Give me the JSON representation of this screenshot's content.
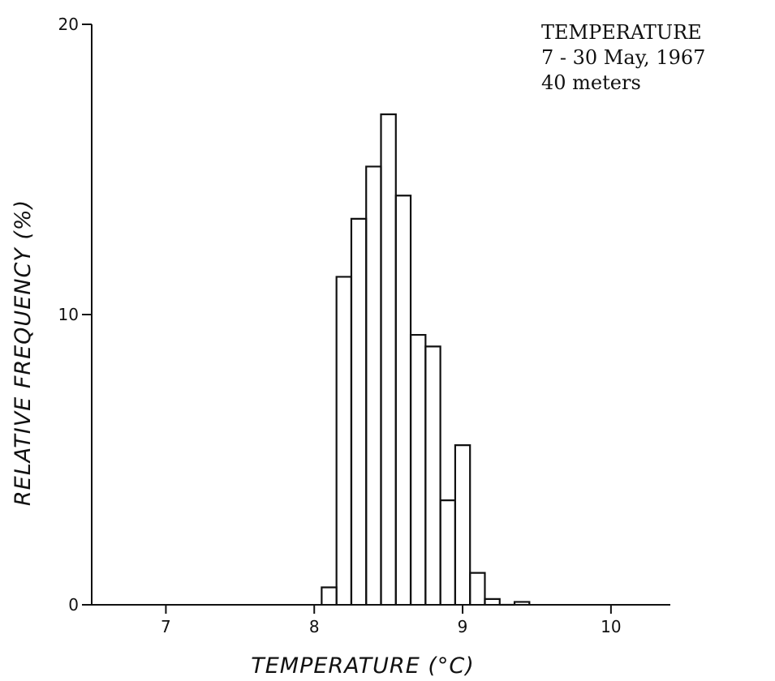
{
  "chart_data": {
    "type": "bar",
    "subtype": "histogram-step",
    "title": "",
    "annotation_lines": [
      "TEMPERATURE",
      "7 - 30 May, 1967",
      "40 meters"
    ],
    "xlabel": "TEMPERATURE (°C)",
    "ylabel": "RELATIVE FREQUENCY (%)",
    "xlim": [
      6.5,
      10.4
    ],
    "ylim": [
      0,
      20
    ],
    "x_ticks": [
      7,
      8,
      9,
      10
    ],
    "x_tick_labels": [
      "7",
      "8",
      "9",
      "10"
    ],
    "y_ticks": [
      0,
      10,
      20
    ],
    "y_tick_labels": [
      "0",
      "10",
      "20"
    ],
    "bin_width": 0.1,
    "bins": [
      {
        "x0": 8.05,
        "x1": 8.15,
        "value": 0.6
      },
      {
        "x0": 8.15,
        "x1": 8.25,
        "value": 11.3
      },
      {
        "x0": 8.25,
        "x1": 8.35,
        "value": 13.3
      },
      {
        "x0": 8.35,
        "x1": 8.45,
        "value": 15.1
      },
      {
        "x0": 8.45,
        "x1": 8.55,
        "value": 16.9
      },
      {
        "x0": 8.55,
        "x1": 8.65,
        "value": 14.1
      },
      {
        "x0": 8.65,
        "x1": 8.75,
        "value": 9.3
      },
      {
        "x0": 8.75,
        "x1": 8.85,
        "value": 8.9
      },
      {
        "x0": 8.85,
        "x1": 8.95,
        "value": 3.6
      },
      {
        "x0": 8.95,
        "x1": 9.05,
        "value": 5.5
      },
      {
        "x0": 9.05,
        "x1": 9.15,
        "value": 1.1
      },
      {
        "x0": 9.15,
        "x1": 9.25,
        "value": 0.2
      },
      {
        "x0": 9.25,
        "x1": 9.35,
        "value": 0.0
      },
      {
        "x0": 9.35,
        "x1": 9.45,
        "value": 0.1
      }
    ],
    "grid": false,
    "legend": "none"
  }
}
